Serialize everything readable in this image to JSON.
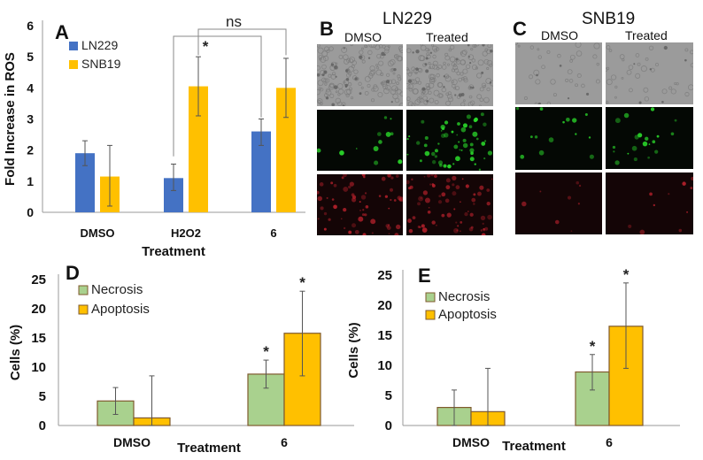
{
  "colors": {
    "ln229": "#4472C4",
    "snb19": "#FFC000",
    "necrosis": "#A9D18E",
    "apoptosis": "#FFC000",
    "bar_border": "#7F5A2E",
    "axis": "#9a9a9a",
    "errorbar": "#555555",
    "brightfield": "#9b9b9b",
    "fluor_green": "#2bdc2b",
    "fluor_red": "#b0202a"
  },
  "panel_labels": {
    "a": "A",
    "b": "B",
    "c": "C",
    "d": "D",
    "e": "E"
  },
  "micrographs": {
    "b": {
      "title": "LN229",
      "columns": [
        "DMSO",
        "Treated"
      ],
      "rows": [
        "brightfield",
        "green-fluorescence",
        "red-fluorescence"
      ]
    },
    "c": {
      "title": "SNB19",
      "columns": [
        "DMSO",
        "Treated"
      ],
      "rows": [
        "brightfield",
        "green-fluorescence",
        "red-fluorescence"
      ]
    }
  },
  "chart_data": [
    {
      "id": "A",
      "type": "bar",
      "title": "",
      "xlabel": "Treatment",
      "ylabel": "Fold Increase in ROS",
      "ylim": [
        0,
        6
      ],
      "yticks": [
        0,
        1,
        2,
        3,
        4,
        5,
        6
      ],
      "grid": false,
      "legend_position": "top-left",
      "categories": [
        "DMSO",
        "H2O2",
        "6"
      ],
      "series": [
        {
          "name": "LN229",
          "values": [
            1.9,
            1.1,
            2.6
          ],
          "error_low": [
            1.5,
            0.7,
            2.15
          ],
          "error_high": [
            2.3,
            1.55,
            3.0
          ]
        },
        {
          "name": "SNB19",
          "values": [
            1.15,
            4.05,
            4.0
          ],
          "error_low": [
            0.2,
            3.1,
            3.05
          ],
          "error_high": [
            2.15,
            5.0,
            4.95
          ]
        }
      ],
      "annotations": [
        {
          "text": "*",
          "bracket": "H2O2 LN229 vs 6 LN229"
        },
        {
          "text": "ns",
          "bracket": "H2O2 SNB19 vs 6 SNB19"
        }
      ],
      "tick_labels": {
        "x": [
          "DMSO",
          "H2O2",
          "6"
        ],
        "y": [
          "0",
          "1",
          "2",
          "3",
          "4",
          "5",
          "6"
        ]
      }
    },
    {
      "id": "D",
      "type": "bar",
      "title": "",
      "xlabel": "Treatment",
      "ylabel": "Cells (%)",
      "ylim": [
        0,
        25
      ],
      "yticks": [
        0,
        5,
        10,
        15,
        20,
        25
      ],
      "grid": false,
      "legend_position": "top-left",
      "categories": [
        "DMSO",
        "6"
      ],
      "series": [
        {
          "name": "Necrosis",
          "values": [
            4.2,
            8.8
          ],
          "error_low": [
            1.9,
            6.4
          ],
          "error_high": [
            6.5,
            11.2
          ],
          "significance": [
            "",
            "*"
          ]
        },
        {
          "name": "Apoptosis",
          "values": [
            1.3,
            15.8
          ],
          "error_low": [
            0,
            8.5
          ],
          "error_high": [
            8.5,
            23.0
          ],
          "significance": [
            "",
            "*"
          ]
        }
      ],
      "tick_labels": {
        "x": [
          "DMSO",
          "6"
        ],
        "y": [
          "0",
          "5",
          "10",
          "15",
          "20",
          "25"
        ]
      }
    },
    {
      "id": "E",
      "type": "bar",
      "title": "",
      "xlabel": "Treatment",
      "ylabel": "Cells (%)",
      "ylim": [
        0,
        25
      ],
      "yticks": [
        0,
        5,
        10,
        15,
        20,
        25
      ],
      "grid": false,
      "legend_position": "top-left",
      "categories": [
        "DMSO",
        "6"
      ],
      "series": [
        {
          "name": "Necrosis",
          "values": [
            3.0,
            8.9
          ],
          "error_low": [
            0,
            5.9
          ],
          "error_high": [
            5.9,
            11.8
          ],
          "significance": [
            "",
            "*"
          ]
        },
        {
          "name": "Apoptosis",
          "values": [
            2.3,
            16.5
          ],
          "error_low": [
            0,
            9.5
          ],
          "error_high": [
            9.5,
            23.7
          ],
          "significance": [
            "",
            "*"
          ]
        }
      ],
      "tick_labels": {
        "x": [
          "DMSO",
          "6"
        ],
        "y": [
          "0",
          "5",
          "10",
          "15",
          "20",
          "25"
        ]
      }
    }
  ]
}
